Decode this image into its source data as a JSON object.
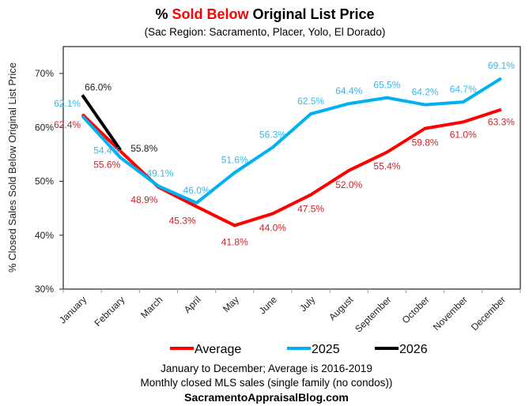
{
  "chart_data": {
    "type": "line",
    "title_parts": [
      {
        "text": "% ",
        "highlight": false
      },
      {
        "text": "Sold Below",
        "highlight": true
      },
      {
        "text": " Original List Price",
        "highlight": false
      }
    ],
    "title": "% Sold Below Original List Price",
    "subtitle": "(Sac Region: Sacramento, Placer, Yolo, El Dorado)",
    "xlabel": "",
    "ylabel": "% Closed Sales Sold Below Original List Price",
    "ylim": [
      30,
      70
    ],
    "yticks": [
      30,
      40,
      50,
      60,
      70
    ],
    "ytick_labels": [
      "30%",
      "40%",
      "50%",
      "60%",
      "70%"
    ],
    "grid": false,
    "legend_position": "bottom",
    "categories": [
      "January",
      "February",
      "March",
      "April",
      "May",
      "June",
      "July",
      "August",
      "September",
      "October",
      "November",
      "December"
    ],
    "series": [
      {
        "name": "Average",
        "color": "#FF0000",
        "label_color": "#C8252B",
        "label_position": "below",
        "values": [
          62.4,
          55.6,
          48.9,
          45.3,
          41.8,
          44.0,
          47.5,
          52.0,
          55.4,
          59.8,
          61.0,
          63.3
        ],
        "labels": [
          "62.4%",
          "55.6%",
          "48.9%",
          "45.3%",
          "41.8%",
          "44.0%",
          "47.5%",
          "52.0%",
          "55.4%",
          "59.8%",
          "61.0%",
          "63.3%"
        ]
      },
      {
        "name": "2025",
        "color": "#00B0F0",
        "label_color": "#33B9F0",
        "label_position": "above",
        "values": [
          62.1,
          54.4,
          49.1,
          46.0,
          51.6,
          56.3,
          62.5,
          64.4,
          65.5,
          64.2,
          64.7,
          69.1
        ],
        "labels": [
          "62.1%",
          "54.4%",
          "49.1%",
          "46.0%",
          "51.6%",
          "56.3%",
          "62.5%",
          "64.4%",
          "65.5%",
          "64.2%",
          "64.7%",
          "69.1%"
        ]
      },
      {
        "name": "2026",
        "color": "#000000",
        "label_color": "#222222",
        "label_position": "right",
        "values": [
          66.0,
          55.8
        ],
        "labels": [
          "66.0%",
          "55.8%"
        ]
      }
    ],
    "footnotes": [
      "January to December; Average is 2016-2019",
      "Monthly closed MLS sales (single family (no condos))"
    ],
    "source": "SacramentoAppraisalBlog.com"
  }
}
